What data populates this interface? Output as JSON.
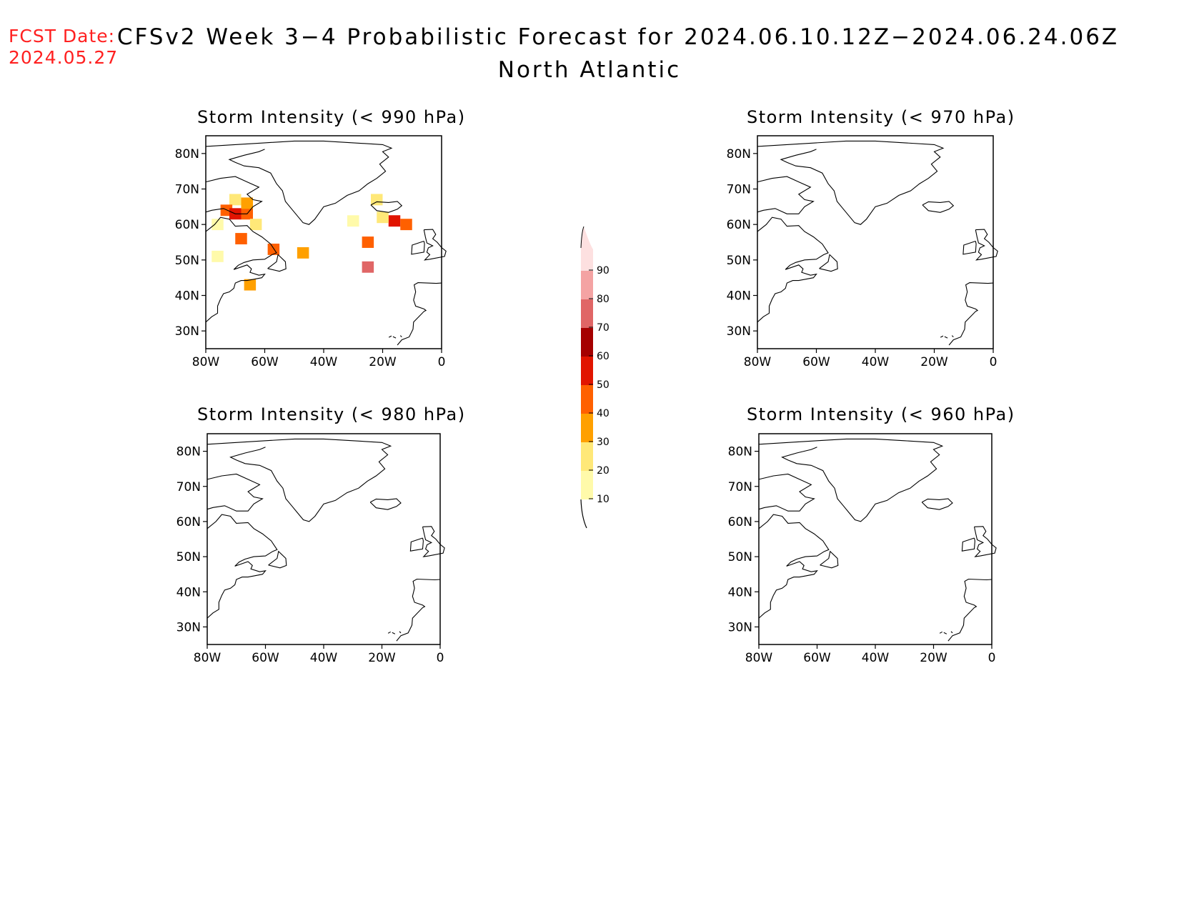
{
  "header": {
    "fcst_label": "FCST Date:",
    "fcst_date": "2024.05.27",
    "title": "CFSv2 Week 3−4 Probabilistic Forecast for 2024.06.10.12Z−2024.06.24.06Z",
    "region": "North Atlantic"
  },
  "panels": [
    {
      "title": "Storm Intensity (< 990 hPa)"
    },
    {
      "title": "Storm Intensity (< 970 hPa)"
    },
    {
      "title": "Storm Intensity (< 980 hPa)"
    },
    {
      "title": "Storm Intensity (< 960 hPa)"
    }
  ],
  "axes": {
    "lat_labels": [
      "80N",
      "70N",
      "60N",
      "50N",
      "40N",
      "30N"
    ],
    "lon_labels": [
      "80W",
      "60W",
      "40W",
      "20W",
      "0"
    ]
  },
  "colorbar": {
    "labels": [
      "10",
      "20",
      "30",
      "40",
      "50",
      "60",
      "70",
      "80",
      "90"
    ],
    "colors": [
      "#fffaaa",
      "#ffe878",
      "#ffa000",
      "#ff6000",
      "#e11400",
      "#a50000",
      "#e06666",
      "#f4a3a3",
      "#fde0e0"
    ]
  },
  "chart_data": {
    "type": "heatmap",
    "units": "probability (%)",
    "lon_range": [
      -80,
      0
    ],
    "lat_range": [
      25,
      85
    ],
    "panel_990_cells": [
      {
        "lon": -70,
        "lat": 67,
        "value": 25
      },
      {
        "lon": -73,
        "lat": 64,
        "value": 40
      },
      {
        "lon": -70,
        "lat": 63,
        "value": 50
      },
      {
        "lon": -66,
        "lat": 63,
        "value": 40
      },
      {
        "lon": -66,
        "lat": 66,
        "value": 30
      },
      {
        "lon": -76,
        "lat": 60,
        "value": 15
      },
      {
        "lon": -63,
        "lat": 60,
        "value": 20
      },
      {
        "lon": -68,
        "lat": 56,
        "value": 40
      },
      {
        "lon": -57,
        "lat": 53,
        "value": 40
      },
      {
        "lon": -47,
        "lat": 52,
        "value": 30
      },
      {
        "lon": -76,
        "lat": 51,
        "value": 15
      },
      {
        "lon": -65,
        "lat": 43,
        "value": 30
      },
      {
        "lon": -25,
        "lat": 55,
        "value": 40
      },
      {
        "lon": -25,
        "lat": 48,
        "value": 70
      },
      {
        "lon": -16,
        "lat": 61,
        "value": 50
      },
      {
        "lon": -12,
        "lat": 60,
        "value": 40
      },
      {
        "lon": -20,
        "lat": 62,
        "value": 20
      },
      {
        "lon": -22,
        "lat": 67,
        "value": 20
      },
      {
        "lon": -30,
        "lat": 61,
        "value": 15
      }
    ],
    "panel_970_cells": [],
    "panel_980_cells": [],
    "panel_960_cells": []
  }
}
